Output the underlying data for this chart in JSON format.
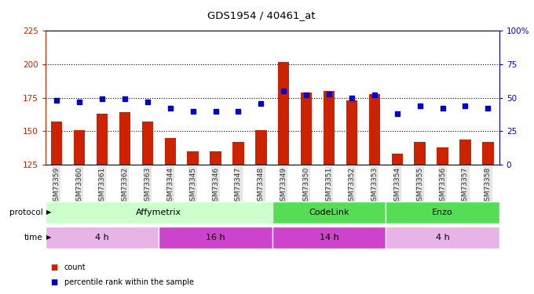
{
  "title": "GDS1954 / 40461_at",
  "samples": [
    "GSM73359",
    "GSM73360",
    "GSM73361",
    "GSM73362",
    "GSM73363",
    "GSM73344",
    "GSM73345",
    "GSM73346",
    "GSM73347",
    "GSM73348",
    "GSM73349",
    "GSM73350",
    "GSM73351",
    "GSM73352",
    "GSM73353",
    "GSM73354",
    "GSM73355",
    "GSM73356",
    "GSM73357",
    "GSM73358"
  ],
  "count_values": [
    157,
    151,
    163,
    164,
    157,
    145,
    135,
    135,
    142,
    151,
    202,
    179,
    180,
    173,
    178,
    133,
    142,
    138,
    144,
    142
  ],
  "percentile_values": [
    48,
    47,
    49,
    49,
    47,
    42,
    40,
    40,
    40,
    46,
    55,
    52,
    53,
    50,
    52,
    38,
    44,
    42,
    44,
    42
  ],
  "ylim_left": [
    125,
    225
  ],
  "ylim_right": [
    0,
    100
  ],
  "yticks_left": [
    125,
    150,
    175,
    200,
    225
  ],
  "yticks_right": [
    0,
    25,
    50,
    75,
    100
  ],
  "bar_color": "#cc2200",
  "dot_color": "#0000cc",
  "tick_color_left": "#cc2200",
  "tick_color_right": "#0000cc",
  "protocols": [
    {
      "label": "Affymetrix",
      "start": 0,
      "end": 10,
      "color": "#ccffcc"
    },
    {
      "label": "CodeLink",
      "start": 10,
      "end": 15,
      "color": "#55dd55"
    },
    {
      "label": "Enzo",
      "start": 15,
      "end": 20,
      "color": "#55dd55"
    }
  ],
  "times": [
    {
      "label": "4 h",
      "start": 0,
      "end": 5,
      "color": "#e8b4e8"
    },
    {
      "label": "16 h",
      "start": 5,
      "end": 10,
      "color": "#cc44cc"
    },
    {
      "label": "14 h",
      "start": 10,
      "end": 15,
      "color": "#cc44cc"
    },
    {
      "label": "4 h",
      "start": 15,
      "end": 20,
      "color": "#e8b4e8"
    }
  ],
  "legend_count_label": "count",
  "legend_pct_label": "percentile rank within the sample",
  "protocol_label": "protocol",
  "time_label": "time",
  "grid_dotted_at": [
    150,
    175,
    200
  ]
}
